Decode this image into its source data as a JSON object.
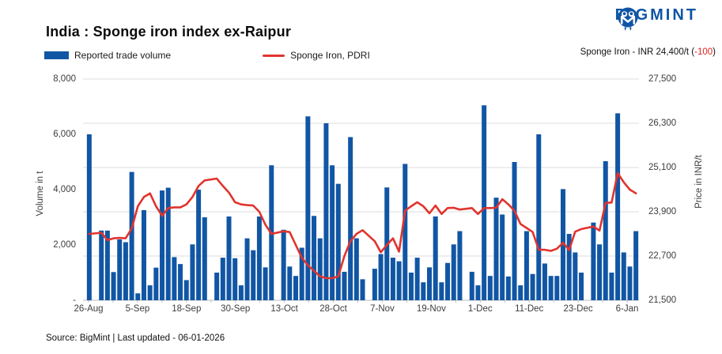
{
  "brand": {
    "logo_text": "BIGMINT"
  },
  "title": "India : Sponge iron index ex-Raipur",
  "legend": {
    "volume_label": "Reported trade volume",
    "price_label": "Sponge Iron, PDRI"
  },
  "annotation": {
    "prefix": "Sponge Iron - INR 24,400/t (",
    "change": "-100",
    "suffix": ")"
  },
  "footer": "Source: BigMint | Last updated - 06-01-2026",
  "chart_data": {
    "type": "bar+line",
    "title": "India : Sponge iron index ex-Raipur",
    "grid": true,
    "grid_color": "#dcdcdc",
    "baseline_color": "#bdbdbd",
    "latest_price_inr_per_t": 24400,
    "latest_change": -100,
    "x_tick_labels": [
      "26-Aug",
      "5-Sep",
      "18-Sep",
      "30-Sep",
      "13-Oct",
      "28-Oct",
      "7-Nov",
      "19-Nov",
      "1-Dec",
      "11-Dec",
      "23-Dec",
      "6-Jan"
    ],
    "left_axis": {
      "title": "Volume in t",
      "min": 0,
      "max": 8000,
      "tick_values": [
        8000,
        6000,
        4000,
        2000,
        0
      ],
      "tick_labels": [
        "8,000",
        "6,000",
        "4,000",
        "2,000",
        "-"
      ]
    },
    "right_axis": {
      "title": "Price in INR/t",
      "min": 21500,
      "max": 27500,
      "tick_values": [
        27500,
        26300,
        25100,
        23900,
        22700,
        21500
      ],
      "tick_labels": [
        "27,500",
        "26,300",
        "25,100",
        "23,900",
        "22,700",
        "21,500"
      ]
    },
    "series": [
      {
        "name": "Reported trade volume",
        "type": "bar",
        "axis": "left",
        "color": "#1156a4",
        "values": [
          6000,
          null,
          2520,
          2520,
          1020,
          2200,
          2100,
          4640,
          250,
          3260,
          540,
          1180,
          3970,
          4070,
          1560,
          1310,
          730,
          2020,
          4000,
          3000,
          null,
          1000,
          1540,
          3030,
          1520,
          540,
          2240,
          1810,
          3030,
          1190,
          4880,
          null,
          2550,
          1220,
          880,
          1900,
          6650,
          3050,
          2240,
          6400,
          4880,
          4210,
          1030,
          5900,
          2240,
          760,
          null,
          1140,
          1670,
          4080,
          1540,
          1410,
          4930,
          1000,
          1540,
          650,
          1190,
          3030,
          650,
          1350,
          2020,
          2500,
          null,
          1030,
          540,
          7050,
          880,
          3710,
          3100,
          860,
          5000,
          540,
          2500,
          950,
          6000,
          1330,
          880,
          880,
          4020,
          2400,
          1730,
          1000,
          null,
          2810,
          2020,
          5030,
          1000,
          6760,
          1730,
          1220,
          2500
        ]
      },
      {
        "name": "Sponge Iron, PDRI",
        "type": "line",
        "axis": "right",
        "color": "#e0342e",
        "values": [
          23300,
          null,
          23330,
          23130,
          23180,
          23190,
          23180,
          23450,
          24050,
          24300,
          24400,
          24050,
          23790,
          24000,
          24020,
          24020,
          24100,
          24300,
          24600,
          24750,
          null,
          24800,
          24600,
          24420,
          24160,
          24100,
          24080,
          24070,
          23900,
          23550,
          23300,
          null,
          23370,
          23350,
          23000,
          22650,
          22450,
          22300,
          22150,
          22100,
          22100,
          22150,
          22700,
          23100,
          23300,
          23400,
          null,
          23100,
          22800,
          23000,
          23180,
          22820,
          23930,
          24050,
          24160,
          24050,
          23860,
          24070,
          23840,
          24000,
          24010,
          23960,
          null,
          24000,
          23840,
          24000,
          24000,
          24010,
          24240,
          24100,
          23930,
          23570,
          23460,
          23350,
          22870,
          22870,
          22840,
          22900,
          23060,
          22860,
          23360,
          23430,
          null,
          23500,
          23390,
          24140,
          24150,
          24950,
          24700,
          24500,
          24400
        ]
      }
    ]
  }
}
